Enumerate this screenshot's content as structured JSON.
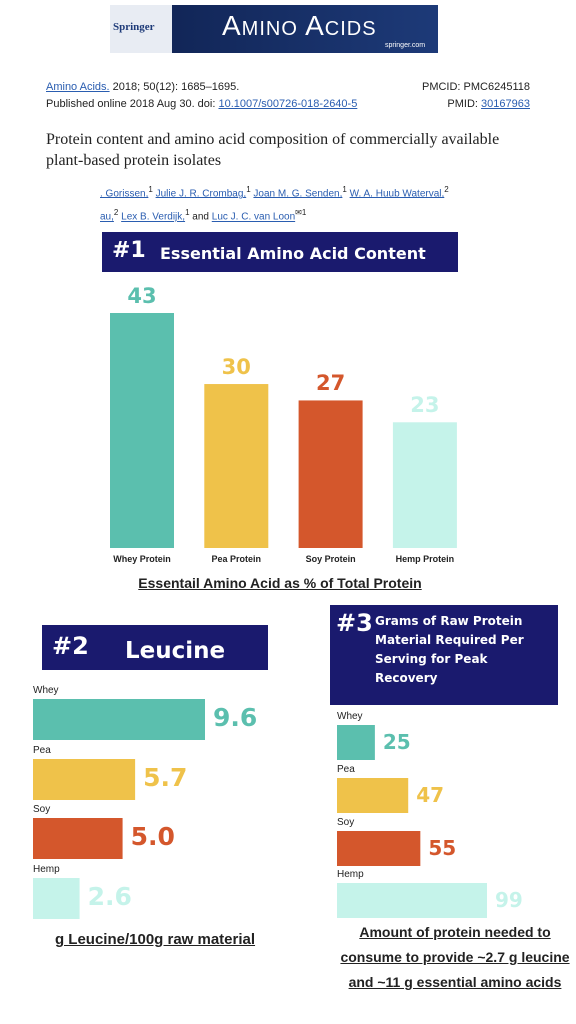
{
  "header": {
    "banner": {
      "publisher": "Springer",
      "journal": "Amino Acids",
      "site": "springer.com"
    },
    "citation": {
      "journal": "Amino Acids.",
      "details": "2018; 50(12): 1685–1695.",
      "pmcid": "PMCID: PMC6245118",
      "published": "Published online 2018 Aug 30. doi:",
      "doi": "10.1007/s00726-018-2640-5",
      "pmid_label": "PMID:",
      "pmid": "30167963"
    },
    "title": "Protein content and amino acid composition of commercially available plant-based protein isolates",
    "authors": [
      [
        {
          "name": ". Gorissen,",
          "sup": "1"
        },
        {
          "name": "Julie J. R. Crombag,",
          "sup": "1"
        },
        {
          "name": "Joan M. G. Senden,",
          "sup": "1"
        },
        {
          "name": "W. A. Huub Waterval,",
          "sup": "2"
        }
      ],
      [
        {
          "name": "au,",
          "sup": "2"
        },
        {
          "name": "Lex B. Verdijk,",
          "sup": "1"
        },
        {
          "name": "and"
        },
        {
          "name": "Luc J. C. van Loon",
          "sup": "✉1"
        }
      ]
    ]
  },
  "chart_data": [
    {
      "type": "bar",
      "number": "#1",
      "title": "Essential Amino Acid Content",
      "categories": [
        "Whey Protein",
        "Pea Protein",
        "Soy Protein",
        "Hemp Protein"
      ],
      "values": [
        43,
        30,
        27,
        23
      ],
      "colors": [
        "#5bbfae",
        "#efc24a",
        "#d4572c",
        "#c5f3ea"
      ],
      "x_label": "Essentail Amino Acid as % of Total Protein"
    },
    {
      "type": "hbar",
      "number": "#2",
      "title": "Leucine",
      "categories": [
        "Whey",
        "Pea",
        "Soy",
        "Hemp"
      ],
      "values": [
        9.6,
        5.7,
        5.0,
        2.6
      ],
      "value_labels": [
        "9.6",
        "5.7",
        "5.0",
        "2.6"
      ],
      "colors": [
        "#5bbfae",
        "#efc24a",
        "#d4572c",
        "#c5f3ea"
      ],
      "x_label": "g Leucine/100g raw material"
    },
    {
      "type": "hbar",
      "number": "#3",
      "title": "Grams of Raw Protein Material Required Per Serving for Peak Recovery",
      "categories": [
        "Whey",
        "Pea",
        "Soy",
        "Hemp"
      ],
      "values": [
        25,
        47,
        55,
        99
      ],
      "colors": [
        "#5bbfae",
        "#efc24a",
        "#d4572c",
        "#c5f3ea"
      ],
      "x_label": "Amount of protein needed to consume to provide ~2.7 g leucine and ~11 g essential amino acids"
    }
  ]
}
